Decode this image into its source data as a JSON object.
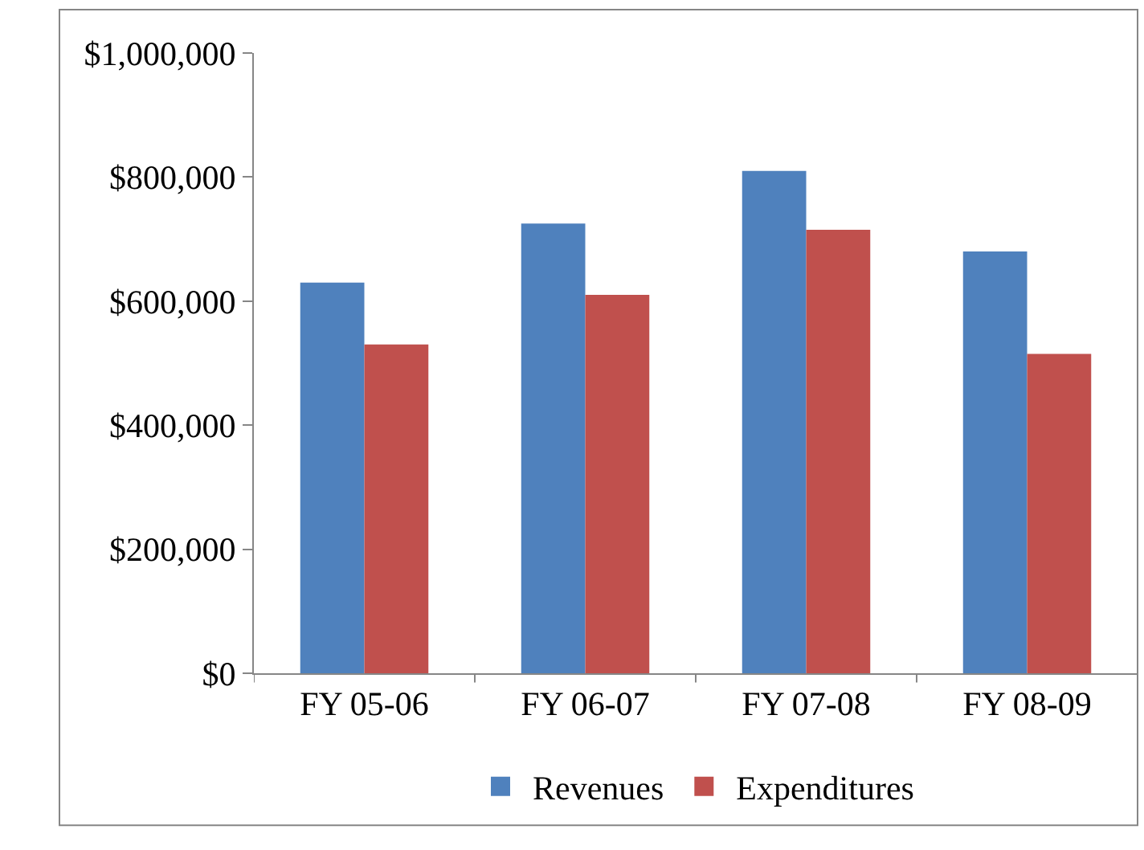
{
  "chart_data": {
    "type": "bar",
    "categories": [
      "FY 05-06",
      "FY 06-07",
      "FY 07-08",
      "FY 08-09"
    ],
    "series": [
      {
        "name": "Revenues",
        "color": "#4f81bd",
        "values": [
          630000,
          725000,
          810000,
          680000
        ]
      },
      {
        "name": "Expenditures",
        "color": "#c0504d",
        "values": [
          530000,
          610000,
          715000,
          515000
        ]
      }
    ],
    "ylim": [
      0,
      1000000
    ],
    "yticks": [
      {
        "value": 0,
        "label": "$0"
      },
      {
        "value": 200000,
        "label": "$200,000"
      },
      {
        "value": 400000,
        "label": "$400,000"
      },
      {
        "value": 600000,
        "label": "$600,000"
      },
      {
        "value": 800000,
        "label": "$800,000"
      },
      {
        "value": 1000000,
        "label": "$1,000,000"
      }
    ],
    "legend": "bottom"
  }
}
